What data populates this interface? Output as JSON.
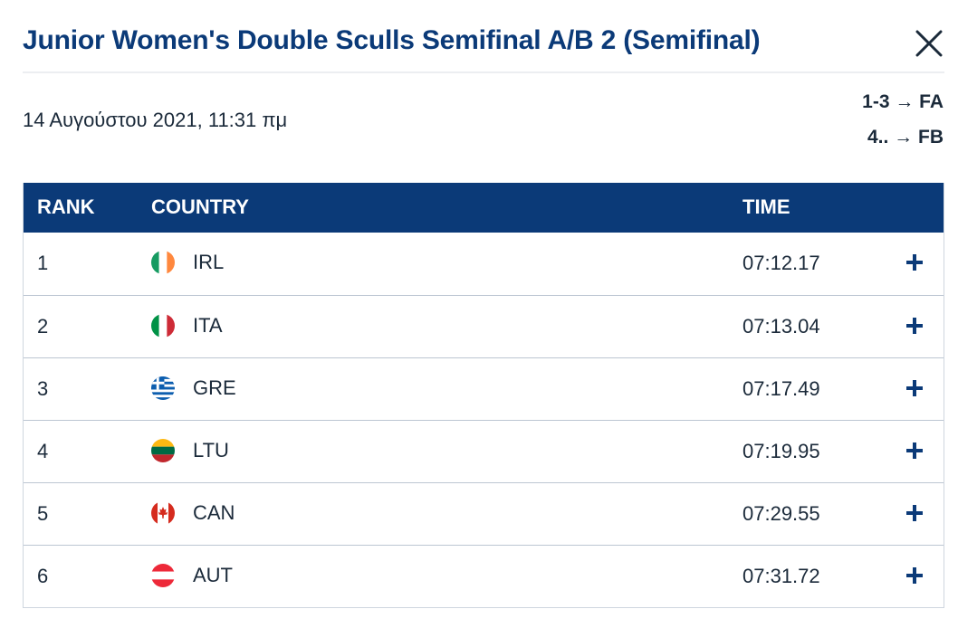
{
  "header": {
    "title": "Junior Women's Double Sculls Semifinal A/B 2 (Semifinal)",
    "date": "14 Αυγούστου 2021, 11:31 πμ",
    "progression": [
      "1-3 → FA",
      "4.. → FB"
    ]
  },
  "table": {
    "columns": {
      "rank": "RANK",
      "country": "COUNTRY",
      "time": "TIME"
    },
    "rows": [
      {
        "rank": "1",
        "country": "IRL",
        "time": "07:12.17",
        "flag": "ireland-flag-icon"
      },
      {
        "rank": "2",
        "country": "ITA",
        "time": "07:13.04",
        "flag": "italy-flag-icon"
      },
      {
        "rank": "3",
        "country": "GRE",
        "time": "07:17.49",
        "flag": "greece-flag-icon"
      },
      {
        "rank": "4",
        "country": "LTU",
        "time": "07:19.95",
        "flag": "lithuania-flag-icon"
      },
      {
        "rank": "5",
        "country": "CAN",
        "time": "07:29.55",
        "flag": "canada-flag-icon"
      },
      {
        "rank": "6",
        "country": "AUT",
        "time": "07:31.72",
        "flag": "austria-flag-icon"
      }
    ]
  },
  "colors": {
    "brand": "#0b3a78",
    "text": "#1b2a3a",
    "row_border": "#bcc6d2"
  }
}
